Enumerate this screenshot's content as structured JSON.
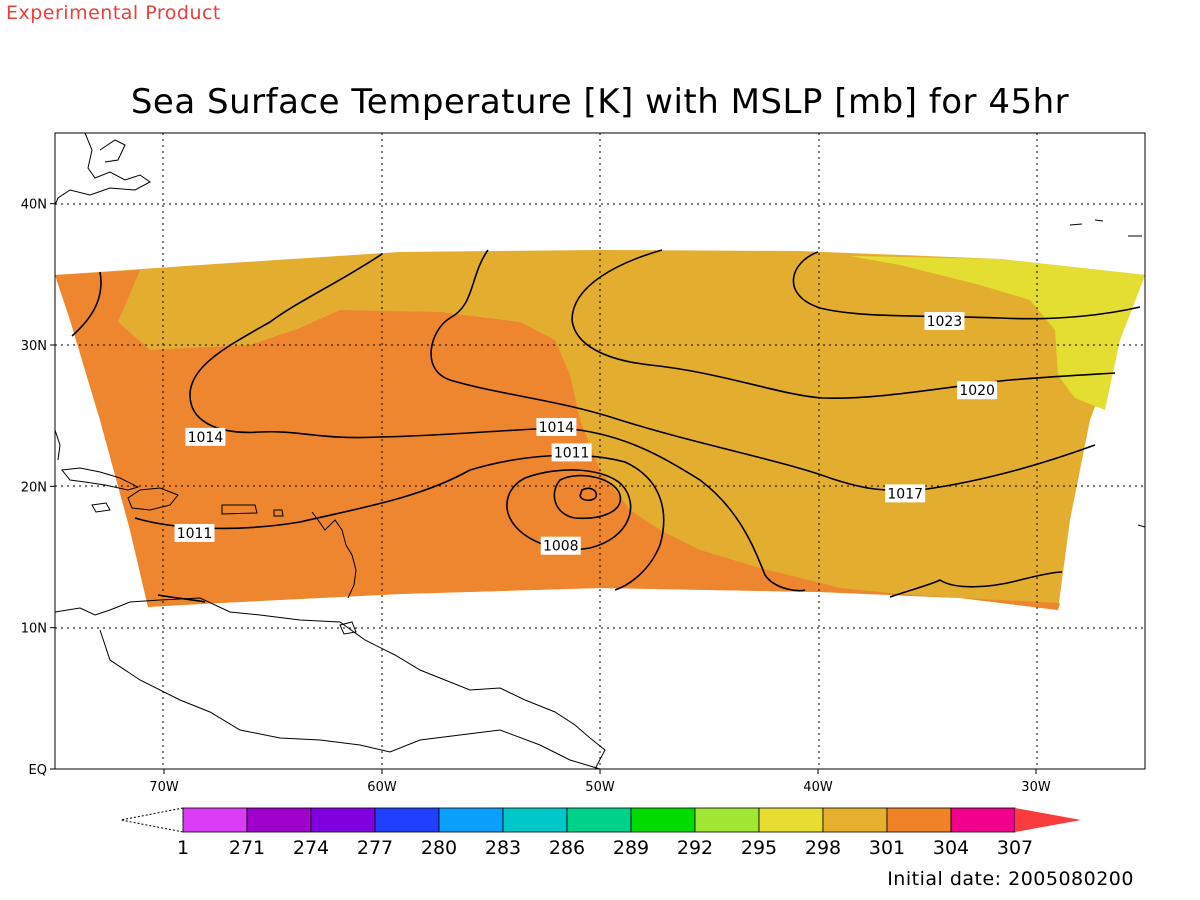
{
  "header": {
    "experimental_label": "Experimental Product",
    "title": "Sea Surface Temperature [K] with MSLP [mb] for 45hr",
    "initial_date": "Initial date: 2005080200"
  },
  "map": {
    "lon_range": [
      -75,
      -25
    ],
    "lat_range": [
      0,
      45
    ],
    "lat_ticks": [
      {
        "value": 0,
        "label": "EQ"
      },
      {
        "value": 10,
        "label": "10N"
      },
      {
        "value": 20,
        "label": "20N"
      },
      {
        "value": 30,
        "label": "30N"
      },
      {
        "value": 40,
        "label": "40N"
      }
    ],
    "lon_ticks": [
      {
        "value": -70,
        "label": "70W"
      },
      {
        "value": -60,
        "label": "60W"
      },
      {
        "value": -50,
        "label": "50W"
      },
      {
        "value": -40,
        "label": "40W"
      },
      {
        "value": -30,
        "label": "30W"
      }
    ],
    "grid": "dotted",
    "colors": {
      "sst_304": "#ee8630",
      "sst_301": "#e3ad30",
      "sst_298": "#e4de33"
    },
    "isobar_labels": [
      {
        "value": "1023",
        "lon": -34.2,
        "lat": 31.7
      },
      {
        "value": "1020",
        "lon": -32.7,
        "lat": 26.8
      },
      {
        "value": "1017",
        "lon": -36.0,
        "lat": 19.5
      },
      {
        "value": "1014",
        "lon": -68.1,
        "lat": 23.5
      },
      {
        "value": "1014",
        "lon": -52.0,
        "lat": 24.2
      },
      {
        "value": "1011",
        "lon": -51.3,
        "lat": 22.4
      },
      {
        "value": "1011",
        "lon": -68.6,
        "lat": 16.7
      },
      {
        "value": "1008",
        "lon": -51.8,
        "lat": 15.8
      }
    ]
  },
  "colorbar": {
    "labels": [
      "1",
      "271",
      "274",
      "277",
      "280",
      "283",
      "286",
      "289",
      "292",
      "295",
      "298",
      "301",
      "304",
      "307"
    ],
    "colors": [
      "#db3cf6",
      "#a000cc",
      "#8000e0",
      "#2040ff",
      "#0aa0fa",
      "#00c8c8",
      "#00d18a",
      "#00dc00",
      "#a0e632",
      "#e6dc32",
      "#e6af2d",
      "#f08228",
      "#f0008c",
      "#fa3c3c"
    ]
  }
}
